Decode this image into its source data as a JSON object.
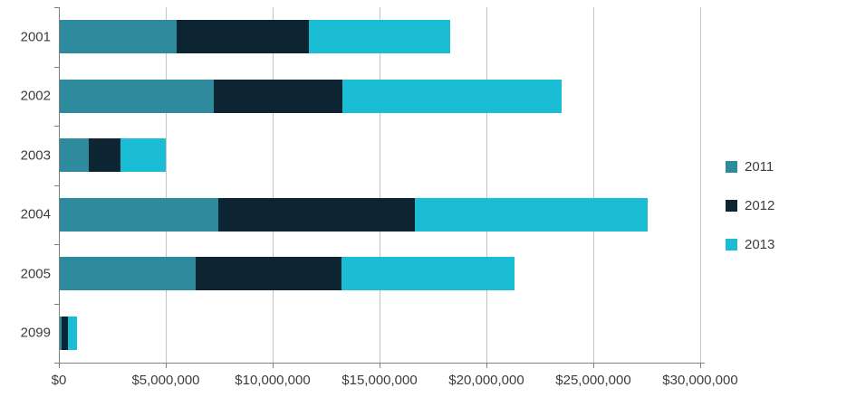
{
  "chart_data": {
    "type": "bar",
    "orientation": "horizontal",
    "stacked": true,
    "title": "",
    "xlabel": "",
    "ylabel": "",
    "grid": true,
    "categories": [
      "2001",
      "2002",
      "2003",
      "2004",
      "2005",
      "2099"
    ],
    "series": [
      {
        "name": "2011",
        "color": "#2e8b9d",
        "values": [
          5500000,
          7250000,
          1400000,
          7450000,
          6400000,
          130000
        ]
      },
      {
        "name": "2012",
        "color": "#0d2433",
        "values": [
          6200000,
          6000000,
          1500000,
          9200000,
          6800000,
          300000
        ]
      },
      {
        "name": "2013",
        "color": "#1bbdd4",
        "values": [
          6600000,
          10250000,
          2100000,
          10900000,
          8100000,
          420000
        ]
      }
    ],
    "x_axis": {
      "min": 0,
      "max": 30000000,
      "tick_interval": 5000000,
      "tick_values": [
        0,
        5000000,
        10000000,
        15000000,
        20000000,
        25000000,
        30000000
      ],
      "tick_labels": [
        "$0",
        "$5,000,000",
        "$10,000,000",
        "$15,000,000",
        "$20,000,000",
        "$25,000,000",
        "$30,000,000"
      ]
    },
    "legend": {
      "position": "right",
      "entries": [
        "2011",
        "2012",
        "2013"
      ]
    }
  },
  "colors": {
    "background": "#ffffff",
    "axis_line": "#7f7f7f",
    "gridline": "#c3c3c3",
    "tick_text": "#3d3d3d",
    "series_2011": "#2e8b9d",
    "series_2012": "#0d2433",
    "series_2013": "#1bbdd4"
  }
}
